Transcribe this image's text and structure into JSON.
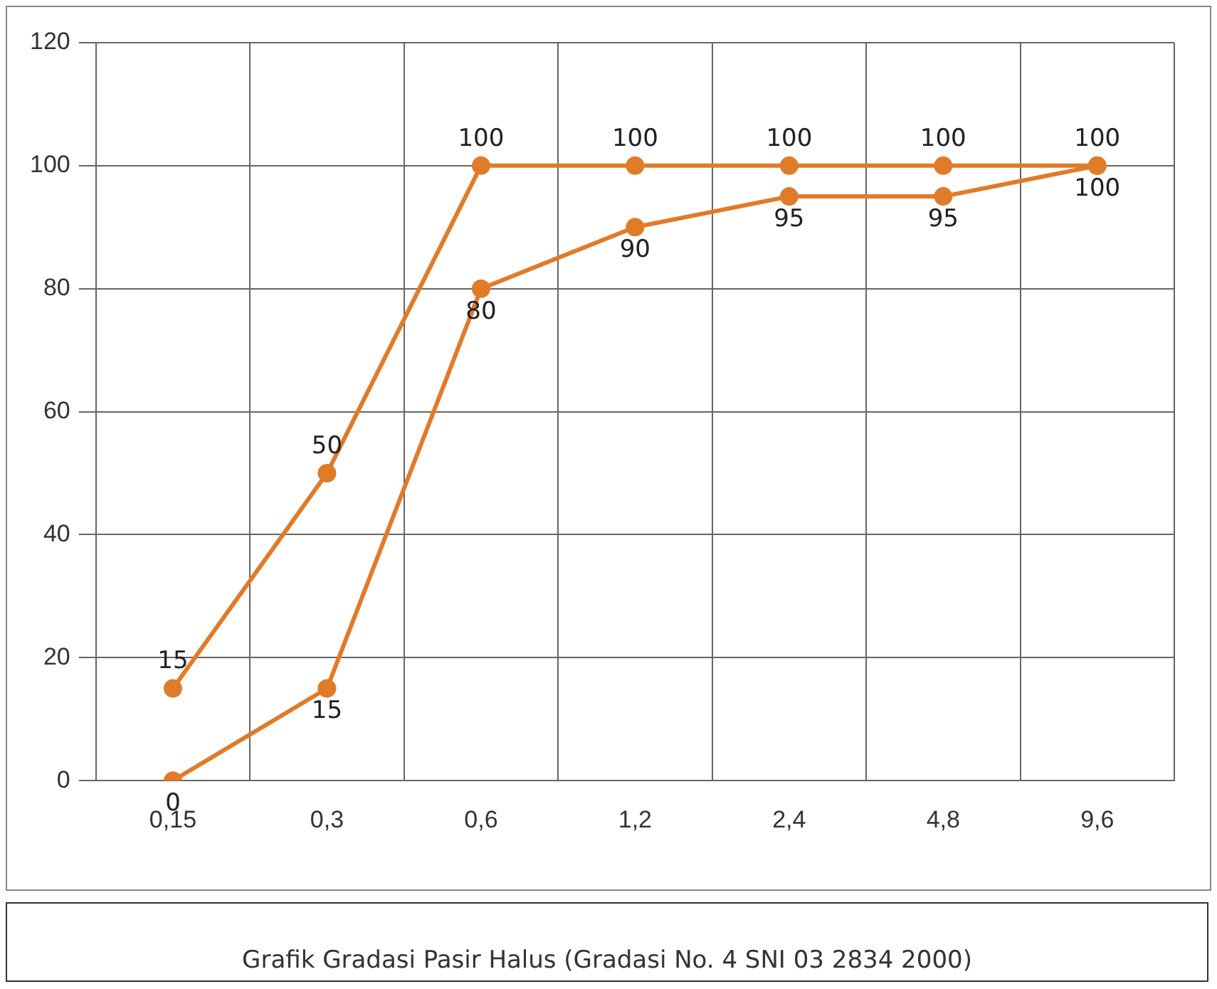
{
  "chart_data": {
    "type": "line",
    "title": "Grafik Gradasi Pasir Halus (Gradasi No. 4  SNI 03 2834 2000)",
    "categories": [
      "0,15",
      "0,3",
      "0,6",
      "1,2",
      "2,4",
      "4,8",
      "9,6"
    ],
    "series": [
      {
        "color": "#e07b2a",
        "values": [
          15,
          50,
          100,
          100,
          100,
          100,
          100
        ]
      },
      {
        "color": "#e07b2a",
        "values": [
          0,
          15,
          80,
          90,
          95,
          95,
          100
        ]
      }
    ],
    "ylim": [
      0,
      120
    ],
    "yticks": [
      0,
      20,
      40,
      60,
      80,
      100,
      120
    ],
    "grid": true,
    "legend": false,
    "marker": "circle",
    "line_style": "solid",
    "data_labels": true
  }
}
